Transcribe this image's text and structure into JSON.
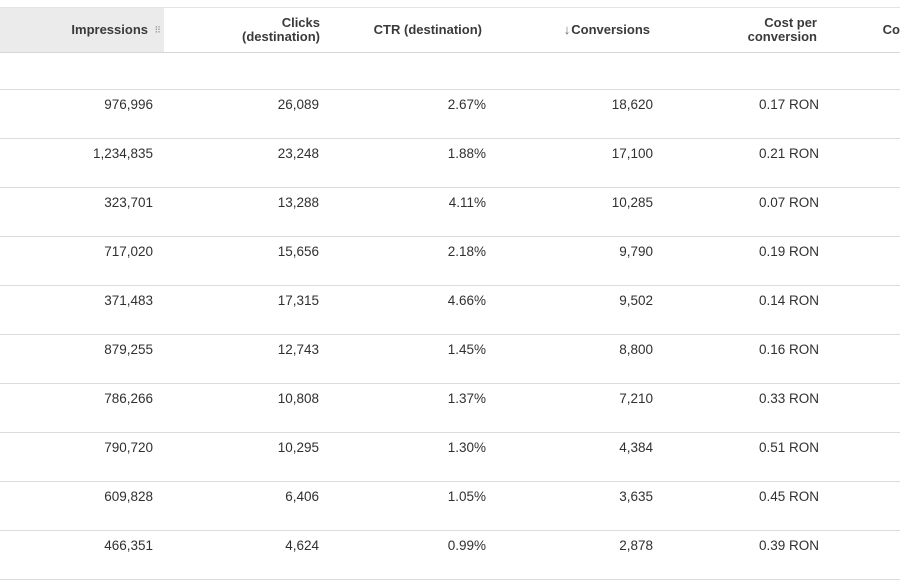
{
  "table": {
    "columns": [
      {
        "label": "Impressions",
        "grip_icon": "drag-handle-icon"
      },
      {
        "label_line1": "Clicks",
        "label_line2": "(destination)"
      },
      {
        "label": "CTR (destination)"
      },
      {
        "label": "Conversions",
        "sort_icon": "sort-descending-icon",
        "arrow": "↓"
      },
      {
        "label_line1": "Cost per",
        "label_line2": "conversion"
      },
      {
        "label": "Co"
      }
    ],
    "rows": [
      [
        "976,996",
        "26,089",
        "2.67%",
        "18,620",
        "0.17 RON"
      ],
      [
        "1,234,835",
        "23,248",
        "1.88%",
        "17,100",
        "0.21 RON"
      ],
      [
        "323,701",
        "13,288",
        "4.11%",
        "10,285",
        "0.07 RON"
      ],
      [
        "717,020",
        "15,656",
        "2.18%",
        "9,790",
        "0.19 RON"
      ],
      [
        "371,483",
        "17,315",
        "4.66%",
        "9,502",
        "0.14 RON"
      ],
      [
        "879,255",
        "12,743",
        "1.45%",
        "8,800",
        "0.16 RON"
      ],
      [
        "786,266",
        "10,808",
        "1.37%",
        "7,210",
        "0.33 RON"
      ],
      [
        "790,720",
        "10,295",
        "1.30%",
        "4,384",
        "0.51 RON"
      ],
      [
        "609,828",
        "6,406",
        "1.05%",
        "3,635",
        "0.45 RON"
      ],
      [
        "466,351",
        "4,624",
        "0.99%",
        "2,878",
        "0.39 RON"
      ]
    ]
  }
}
